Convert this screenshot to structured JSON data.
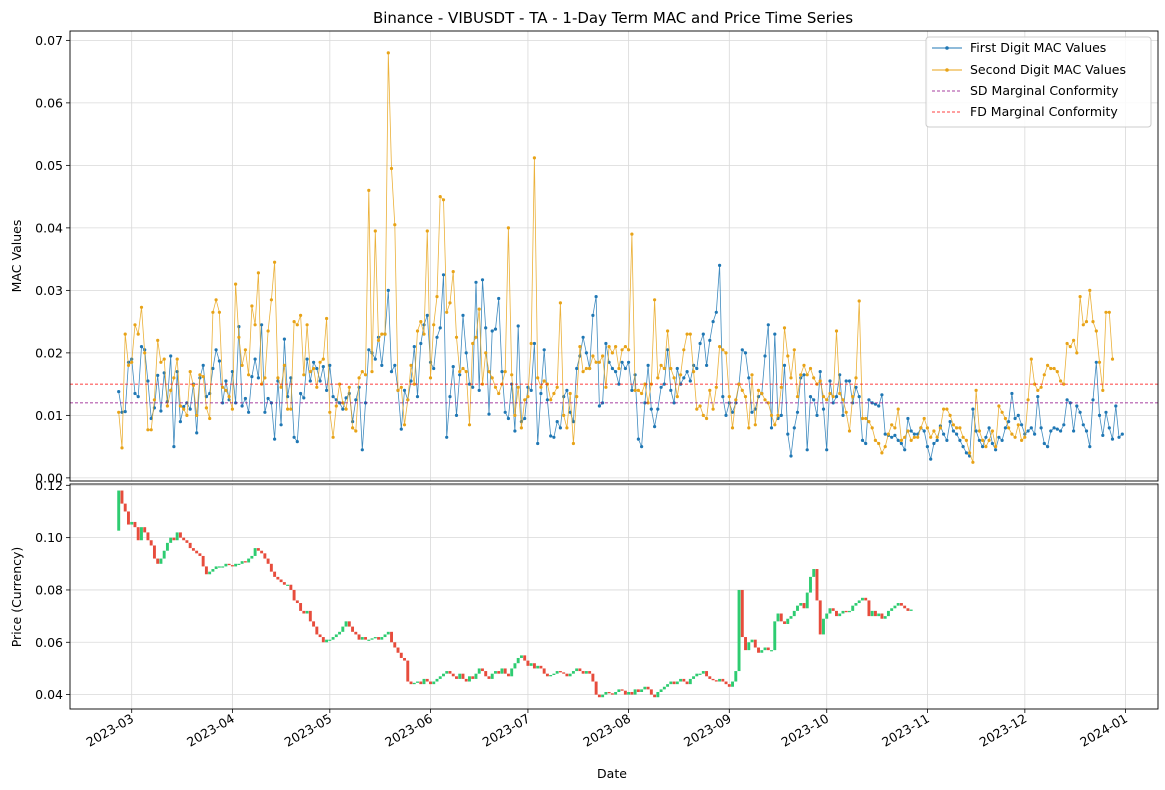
{
  "chart_data": [
    {
      "type": "line",
      "title": "Binance - VIBUSDT - TA - 1-Day Term MAC and Price Time Series",
      "ylabel": "MAC Values",
      "ylim": [
        -0.0005,
        0.0715
      ],
      "yticks": [
        "0.00",
        "0.01",
        "0.02",
        "0.03",
        "0.04",
        "0.05",
        "0.06",
        "0.07"
      ],
      "ytick_values": [
        0,
        0.01,
        0.02,
        0.03,
        0.04,
        0.05,
        0.06,
        0.07
      ],
      "grid": true,
      "legend_position": "top-right",
      "series": [
        {
          "name": "First Digit MAC Values",
          "color": "#1f77b4",
          "x_start": "2023-02-25",
          "step_days": 1,
          "values": [
            0.0138,
            0.0105,
            0.0106,
            0.0185,
            0.019,
            0.0135,
            0.013,
            0.021,
            0.0205,
            0.0155,
            0.0095,
            0.0112,
            0.0164,
            0.0107,
            0.0168,
            0.0122,
            0.0195,
            0.005,
            0.017,
            0.009,
            0.0114,
            0.012,
            0.011,
            0.015,
            0.0072,
            0.016,
            0.018,
            0.013,
            0.0135,
            0.0175,
            0.0205,
            0.0187,
            0.012,
            0.0155,
            0.0125,
            0.017,
            0.012,
            0.0242,
            0.0115,
            0.0127,
            0.0105,
            0.0162,
            0.019,
            0.016,
            0.0245,
            0.0105,
            0.0127,
            0.012,
            0.0062,
            0.0155,
            0.0085,
            0.0222,
            0.013,
            0.016,
            0.0065,
            0.0058,
            0.0135,
            0.0128,
            0.019,
            0.0155,
            0.0185,
            0.0175,
            0.0155,
            0.0178,
            0.014,
            0.018,
            0.013,
            0.0125,
            0.012,
            0.011,
            0.0128,
            0.0135,
            0.009,
            0.0125,
            0.0145,
            0.0045,
            0.012,
            0.0205,
            0.02,
            0.019,
            0.0225,
            0.018,
            0.023,
            0.03,
            0.017,
            0.018,
            0.014,
            0.0078,
            0.014,
            0.0125,
            0.0155,
            0.021,
            0.013,
            0.0215,
            0.0245,
            0.026,
            0.0185,
            0.0175,
            0.0225,
            0.024,
            0.0325,
            0.0065,
            0.013,
            0.0178,
            0.01,
            0.0165,
            0.026,
            0.02,
            0.015,
            0.0145,
            0.0313,
            0.014,
            0.0317,
            0.024,
            0.0102,
            0.0235,
            0.0238,
            0.0287,
            0.017,
            0.0105,
            0.0095,
            0.015,
            0.0075,
            0.0243,
            0.009,
            0.0095,
            0.0145,
            0.014,
            0.0215,
            0.0055,
            0.0135,
            0.0205,
            0.0125,
            0.0067,
            0.0065,
            0.009,
            0.008,
            0.013,
            0.014,
            0.0105,
            0.009,
            0.0175,
            0.0195,
            0.0225,
            0.02,
            0.0175,
            0.026,
            0.029,
            0.0115,
            0.012,
            0.0215,
            0.0185,
            0.0175,
            0.017,
            0.015,
            0.0185,
            0.0175,
            0.0185,
            0.014,
            0.0165,
            0.0062,
            0.005,
            0.012,
            0.018,
            0.011,
            0.0082,
            0.011,
            0.0145,
            0.015,
            0.0205,
            0.014,
            0.012,
            0.0175,
            0.015,
            0.016,
            0.017,
            0.0155,
            0.018,
            0.0175,
            0.0215,
            0.023,
            0.018,
            0.022,
            0.025,
            0.0265,
            0.034,
            0.013,
            0.01,
            0.012,
            0.0105,
            0.012,
            0.015,
            0.0205,
            0.02,
            0.016,
            0.0105,
            0.011,
            0.013,
            0.0135,
            0.0195,
            0.0245,
            0.008,
            0.023,
            0.0095,
            0.01,
            0.018,
            0.007,
            0.0035,
            0.008,
            0.0105,
            0.016,
            0.0165,
            0.0045,
            0.013,
            0.0125,
            0.01,
            0.017,
            0.011,
            0.0045,
            0.0155,
            0.012,
            0.013,
            0.0165,
            0.01,
            0.0155,
            0.0155,
            0.012,
            0.0145,
            0.013,
            0.006,
            0.0055,
            0.0125,
            0.012,
            0.0118,
            0.0115,
            0.0133,
            0.007,
            0.0068,
            0.0065,
            0.0068,
            0.006,
            0.0055,
            0.0045,
            0.0095,
            0.0075,
            0.007,
            0.007,
            0.008,
            0.0075,
            0.005,
            0.003,
            0.0055,
            0.006,
            0.0083,
            0.007,
            0.006,
            0.009,
            0.0075,
            0.007,
            0.006,
            0.005,
            0.004,
            0.0035,
            0.011,
            0.0075,
            0.006,
            0.005,
            0.0065,
            0.008,
            0.0055,
            0.0045,
            0.0065,
            0.006,
            0.008,
            0.009,
            0.0135,
            0.0095,
            0.01,
            0.0085,
            0.007,
            0.0075,
            0.008,
            0.007,
            0.013,
            0.008,
            0.0055,
            0.005,
            0.0075,
            0.008,
            0.0078,
            0.0075,
            0.0085,
            0.0125,
            0.012,
            0.0075,
            0.0115,
            0.0105,
            0.0085,
            0.0075,
            0.005,
            0.0125,
            0.0185,
            0.01,
            0.0068,
            0.0105,
            0.008,
            0.0062,
            0.0115,
            0.0065,
            0.007
          ]
        },
        {
          "name": "Second Digit MAC Values",
          "color": "#e8a317",
          "x_start": "2023-02-25",
          "step_days": 1,
          "values": [
            0.0105,
            0.0048,
            0.023,
            0.018,
            0.0185,
            0.0245,
            0.023,
            0.0273,
            0.02,
            0.0077,
            0.0077,
            0.0125,
            0.022,
            0.0185,
            0.019,
            0.0115,
            0.014,
            0.016,
            0.019,
            0.0115,
            0.011,
            0.01,
            0.017,
            0.0148,
            0.01,
            0.0165,
            0.0162,
            0.0112,
            0.0095,
            0.0265,
            0.0285,
            0.0265,
            0.0145,
            0.014,
            0.013,
            0.011,
            0.031,
            0.0225,
            0.018,
            0.0205,
            0.0165,
            0.0275,
            0.0245,
            0.0328,
            0.015,
            0.016,
            0.0235,
            0.0285,
            0.0345,
            0.016,
            0.0145,
            0.018,
            0.011,
            0.011,
            0.025,
            0.0245,
            0.026,
            0.0165,
            0.0245,
            0.017,
            0.0175,
            0.0145,
            0.0185,
            0.019,
            0.0255,
            0.0105,
            0.0065,
            0.0115,
            0.015,
            0.012,
            0.011,
            0.0145,
            0.008,
            0.0075,
            0.016,
            0.017,
            0.0165,
            0.046,
            0.017,
            0.0395,
            0.022,
            0.023,
            0.023,
            0.068,
            0.0495,
            0.0405,
            0.014,
            0.0145,
            0.0085,
            0.0125,
            0.018,
            0.015,
            0.0235,
            0.025,
            0.023,
            0.0395,
            0.016,
            0.0245,
            0.029,
            0.045,
            0.0445,
            0.0265,
            0.028,
            0.033,
            0.0225,
            0.017,
            0.0175,
            0.017,
            0.0085,
            0.0215,
            0.0225,
            0.027,
            0.015,
            0.02,
            0.017,
            0.016,
            0.0145,
            0.0135,
            0.015,
            0.017,
            0.04,
            0.0165,
            0.01,
            0.0145,
            0.008,
            0.0125,
            0.013,
            0.0215,
            0.0512,
            0.016,
            0.0145,
            0.0155,
            0.015,
            0.0125,
            0.0135,
            0.0145,
            0.028,
            0.01,
            0.008,
            0.0135,
            0.0055,
            0.013,
            0.021,
            0.017,
            0.0175,
            0.0175,
            0.0195,
            0.0185,
            0.0185,
            0.0195,
            0.0145,
            0.021,
            0.02,
            0.021,
            0.0175,
            0.0205,
            0.021,
            0.0205,
            0.039,
            0.014,
            0.014,
            0.0135,
            0.015,
            0.012,
            0.015,
            0.0285,
            0.016,
            0.018,
            0.0175,
            0.0235,
            0.0175,
            0.016,
            0.013,
            0.0165,
            0.0205,
            0.023,
            0.023,
            0.017,
            0.011,
            0.0115,
            0.01,
            0.0095,
            0.014,
            0.011,
            0.0145,
            0.021,
            0.0205,
            0.02,
            0.013,
            0.008,
            0.0125,
            0.015,
            0.014,
            0.013,
            0.008,
            0.0165,
            0.0085,
            0.014,
            0.0135,
            0.0125,
            0.012,
            0.01,
            0.0085,
            0.01,
            0.0145,
            0.024,
            0.0195,
            0.016,
            0.0205,
            0.013,
            0.0165,
            0.018,
            0.0165,
            0.0175,
            0.016,
            0.015,
            0.0155,
            0.013,
            0.0125,
            0.0135,
            0.013,
            0.0235,
            0.0135,
            0.0125,
            0.0105,
            0.0075,
            0.013,
            0.016,
            0.0283,
            0.0095,
            0.0095,
            0.009,
            0.008,
            0.006,
            0.0055,
            0.004,
            0.005,
            0.007,
            0.0085,
            0.008,
            0.011,
            0.006,
            0.0065,
            0.0075,
            0.006,
            0.0065,
            0.0065,
            0.008,
            0.0095,
            0.008,
            0.0065,
            0.0075,
            0.0065,
            0.008,
            0.011,
            0.011,
            0.01,
            0.0085,
            0.008,
            0.008,
            0.0065,
            0.006,
            0.004,
            0.0025,
            0.014,
            0.0075,
            0.006,
            0.005,
            0.006,
            0.0075,
            0.005,
            0.0115,
            0.0105,
            0.0095,
            0.008,
            0.007,
            0.0065,
            0.0085,
            0.006,
            0.0065,
            0.0125,
            0.019,
            0.015,
            0.014,
            0.0145,
            0.0165,
            0.018,
            0.0175,
            0.0175,
            0.017,
            0.0155,
            0.015,
            0.0215,
            0.021,
            0.022,
            0.02,
            0.029,
            0.0245,
            0.025,
            0.03,
            0.025,
            0.0235,
            0.0185,
            0.014,
            0.0265,
            0.0265,
            0.019
          ]
        },
        {
          "name": "SD Marginal Conformity",
          "color": "#8b0080",
          "style": "dashed",
          "value": 0.012
        },
        {
          "name": "FD Marginal Conformity",
          "color": "#ff0000",
          "style": "dashed",
          "value": 0.015
        }
      ]
    },
    {
      "type": "candlestick",
      "ylabel": "Price (Currency)",
      "xlabel": "Date",
      "ylim": [
        0.0345,
        0.1205
      ],
      "yticks": [
        "0.04",
        "0.06",
        "0.08",
        "0.10",
        "0.12"
      ],
      "ytick_values": [
        0.04,
        0.06,
        0.08,
        0.1,
        0.12
      ],
      "x_ticks": [
        "2023-03",
        "2023-04",
        "2023-05",
        "2023-06",
        "2023-07",
        "2023-08",
        "2023-09",
        "2023-10",
        "2023-11",
        "2023-12",
        "2024-01"
      ],
      "x_tick_dates": [
        "2023-03-01",
        "2023-04-01",
        "2023-05-01",
        "2023-06-01",
        "2023-07-01",
        "2023-08-01",
        "2023-09-01",
        "2023-10-01",
        "2023-11-01",
        "2023-12-01",
        "2024-01-01"
      ],
      "x_range": [
        "2023-02-10",
        "2024-01-11"
      ],
      "up_color": "#2ecc71",
      "down_color": "#e74c3c",
      "x_start": "2023-02-25",
      "step_days": 1,
      "closes": [
        0.118,
        0.113,
        0.11,
        0.105,
        0.106,
        0.104,
        0.099,
        0.104,
        0.102,
        0.099,
        0.097,
        0.092,
        0.09,
        0.092,
        0.095,
        0.098,
        0.1,
        0.099,
        0.102,
        0.1,
        0.099,
        0.098,
        0.096,
        0.095,
        0.094,
        0.093,
        0.089,
        0.086,
        0.087,
        0.088,
        0.089,
        0.089,
        0.089,
        0.09,
        0.0895,
        0.089,
        0.09,
        0.09,
        0.091,
        0.0905,
        0.092,
        0.093,
        0.096,
        0.095,
        0.094,
        0.092,
        0.09,
        0.087,
        0.085,
        0.084,
        0.083,
        0.082,
        0.082,
        0.08,
        0.076,
        0.075,
        0.072,
        0.071,
        0.072,
        0.068,
        0.066,
        0.063,
        0.062,
        0.06,
        0.061,
        0.061,
        0.062,
        0.063,
        0.064,
        0.066,
        0.068,
        0.066,
        0.064,
        0.063,
        0.061,
        0.062,
        0.061,
        0.061,
        0.0615,
        0.062,
        0.061,
        0.062,
        0.063,
        0.064,
        0.06,
        0.058,
        0.056,
        0.054,
        0.053,
        0.045,
        0.044,
        0.0445,
        0.045,
        0.044,
        0.046,
        0.045,
        0.044,
        0.045,
        0.046,
        0.047,
        0.048,
        0.049,
        0.048,
        0.047,
        0.046,
        0.048,
        0.046,
        0.045,
        0.047,
        0.046,
        0.048,
        0.05,
        0.049,
        0.047,
        0.046,
        0.048,
        0.049,
        0.048,
        0.05,
        0.048,
        0.047,
        0.05,
        0.052,
        0.054,
        0.055,
        0.053,
        0.051,
        0.052,
        0.05,
        0.051,
        0.05,
        0.048,
        0.047,
        0.0475,
        0.048,
        0.049,
        0.0485,
        0.048,
        0.047,
        0.048,
        0.049,
        0.05,
        0.049,
        0.048,
        0.049,
        0.048,
        0.045,
        0.04,
        0.039,
        0.04,
        0.041,
        0.0405,
        0.04,
        0.041,
        0.042,
        0.0415,
        0.04,
        0.041,
        0.04,
        0.042,
        0.041,
        0.042,
        0.043,
        0.042,
        0.04,
        0.039,
        0.041,
        0.042,
        0.043,
        0.044,
        0.045,
        0.044,
        0.045,
        0.046,
        0.045,
        0.044,
        0.046,
        0.047,
        0.048,
        0.048,
        0.049,
        0.047,
        0.046,
        0.0455,
        0.045,
        0.046,
        0.045,
        0.044,
        0.043,
        0.045,
        0.049,
        0.08,
        0.062,
        0.057,
        0.06,
        0.061,
        0.058,
        0.056,
        0.057,
        0.058,
        0.057,
        0.057,
        0.068,
        0.071,
        0.068,
        0.067,
        0.069,
        0.07,
        0.072,
        0.074,
        0.075,
        0.073,
        0.079,
        0.085,
        0.088,
        0.076,
        0.063,
        0.069,
        0.071,
        0.073,
        0.072,
        0.07,
        0.071,
        0.072,
        0.0715,
        0.072,
        0.074,
        0.075,
        0.076,
        0.077,
        0.076,
        0.07,
        0.072,
        0.07,
        0.071,
        0.069,
        0.07,
        0.072,
        0.073,
        0.074,
        0.075,
        0.074,
        0.073,
        0.072,
        0.0725
      ]
    }
  ]
}
